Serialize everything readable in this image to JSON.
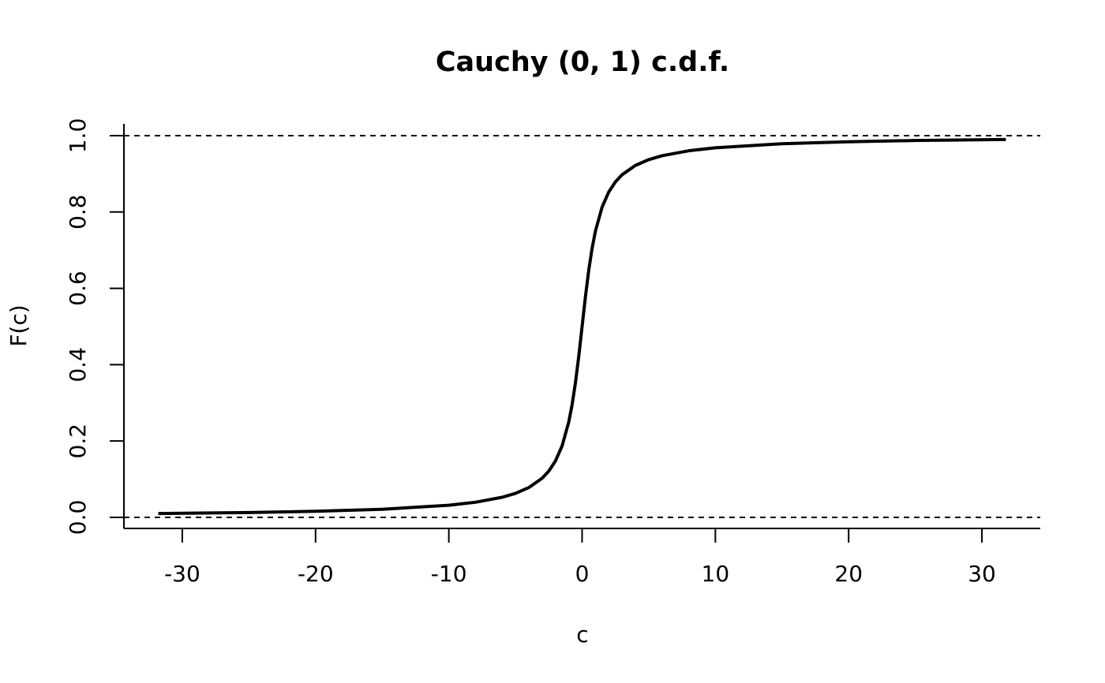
{
  "chart_data": {
    "type": "line",
    "title": "Cauchy (0, 1) c.d.f.",
    "xlabel": "c",
    "ylabel": "F(c)",
    "x": [
      -31.8,
      -25,
      -20,
      -15,
      -10,
      -8,
      -6,
      -5,
      -4,
      -3,
      -2.5,
      -2,
      -1.5,
      -1,
      -0.75,
      -0.5,
      -0.25,
      0,
      0.25,
      0.5,
      0.75,
      1,
      1.5,
      2,
      2.5,
      3,
      4,
      5,
      6,
      8,
      10,
      15,
      20,
      25,
      31.8
    ],
    "series": [
      {
        "color": "#000000",
        "values": [
          0.01,
          0.0127,
          0.0159,
          0.0212,
          0.0317,
          0.0396,
          0.0526,
          0.0628,
          0.078,
          0.1024,
          0.1211,
          0.1476,
          0.1872,
          0.25,
          0.2952,
          0.3524,
          0.422,
          0.5,
          0.578,
          0.6476,
          0.7048,
          0.75,
          0.8128,
          0.8524,
          0.8789,
          0.8976,
          0.922,
          0.9372,
          0.9474,
          0.9604,
          0.9683,
          0.9788,
          0.9841,
          0.9873,
          0.99
        ]
      }
    ],
    "hlines": [
      0,
      1
    ],
    "xlim": [
      -34.38,
      34.38
    ],
    "ylim": [
      -0.029,
      1.031
    ],
    "xticks": [
      -30,
      -20,
      -10,
      0,
      10,
      20,
      30
    ],
    "yticks": [
      {
        "value": 0,
        "label": "0.0"
      },
      {
        "value": 0.2,
        "label": "0.2"
      },
      {
        "value": 0.4,
        "label": "0.4"
      },
      {
        "value": 0.6,
        "label": "0.6"
      },
      {
        "value": 0.8,
        "label": "0.8"
      },
      {
        "value": 1,
        "label": "1.0"
      }
    ]
  }
}
